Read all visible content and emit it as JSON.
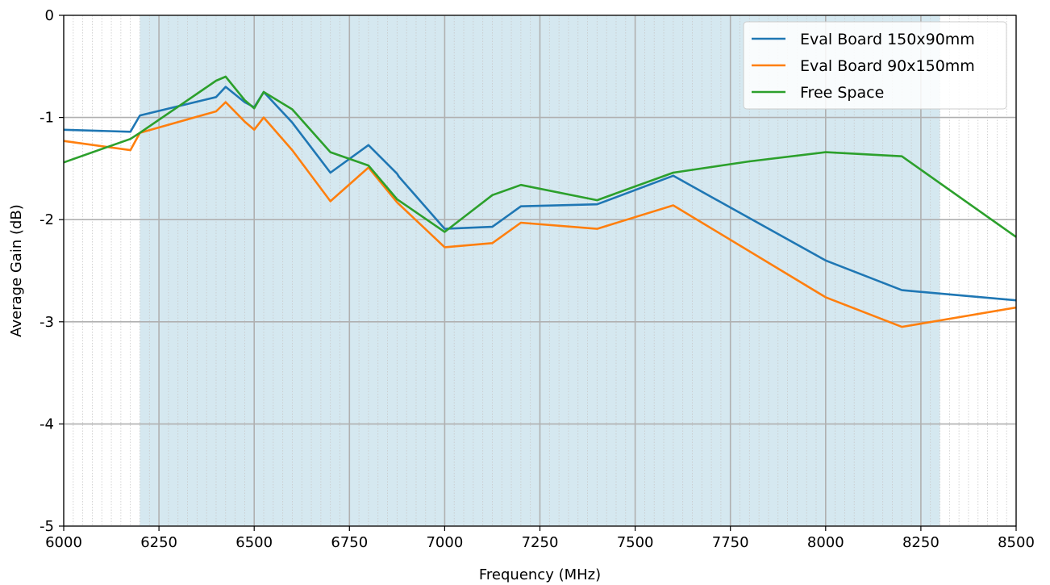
{
  "chart_data": {
    "type": "line",
    "xlabel": "Frequency (MHz)",
    "ylabel": "Average Gain (dB)",
    "xlim": [
      6000,
      8500
    ],
    "ylim": [
      -5,
      0
    ],
    "x_ticks": [
      6000,
      6250,
      6500,
      6750,
      7000,
      7250,
      7500,
      7750,
      8000,
      8250,
      8500
    ],
    "y_ticks": [
      0,
      -1,
      -2,
      -3,
      -4,
      -5
    ],
    "x_tick_labels": [
      "6000",
      "6250",
      "6500",
      "6750",
      "7000",
      "7250",
      "7500",
      "7750",
      "8000",
      "8250",
      "8500"
    ],
    "y_tick_labels": [
      "0",
      "-1",
      "-2",
      "-3",
      "-4",
      "-5"
    ],
    "grid": true,
    "minor_grid_x": true,
    "legend_position": "top-right",
    "shaded_band": {
      "x_start": 6200,
      "x_end": 8300,
      "color": "#d5e8f0"
    },
    "series": [
      {
        "name": "Eval Board 150x90mm",
        "color": "#1f77b4",
        "points": [
          [
            6000,
            -1.12
          ],
          [
            6175,
            -1.14
          ],
          [
            6200,
            -0.98
          ],
          [
            6400,
            -0.8
          ],
          [
            6425,
            -0.7
          ],
          [
            6475,
            -0.85
          ],
          [
            6500,
            -0.9
          ],
          [
            6525,
            -0.75
          ],
          [
            6600,
            -1.05
          ],
          [
            6700,
            -1.54
          ],
          [
            6800,
            -1.27
          ],
          [
            6875,
            -1.55
          ],
          [
            6880,
            -1.58
          ],
          [
            7000,
            -2.09
          ],
          [
            7125,
            -2.07
          ],
          [
            7200,
            -1.87
          ],
          [
            7400,
            -1.85
          ],
          [
            7600,
            -1.57
          ],
          [
            8000,
            -2.4
          ],
          [
            8200,
            -2.69
          ],
          [
            8500,
            -2.79
          ]
        ]
      },
      {
        "name": "Eval Board 90x150mm",
        "color": "#ff7f0e",
        "points": [
          [
            6000,
            -1.23
          ],
          [
            6175,
            -1.32
          ],
          [
            6200,
            -1.15
          ],
          [
            6400,
            -0.94
          ],
          [
            6425,
            -0.85
          ],
          [
            6475,
            -1.04
          ],
          [
            6500,
            -1.12
          ],
          [
            6525,
            -1.0
          ],
          [
            6600,
            -1.32
          ],
          [
            6700,
            -1.82
          ],
          [
            6800,
            -1.49
          ],
          [
            6875,
            -1.83
          ],
          [
            7000,
            -2.27
          ],
          [
            7125,
            -2.23
          ],
          [
            7200,
            -2.03
          ],
          [
            7400,
            -2.09
          ],
          [
            7600,
            -1.86
          ],
          [
            8000,
            -2.76
          ],
          [
            8200,
            -3.05
          ],
          [
            8500,
            -2.86
          ]
        ]
      },
      {
        "name": "Free Space",
        "color": "#2ca02c",
        "points": [
          [
            6000,
            -1.44
          ],
          [
            6175,
            -1.21
          ],
          [
            6200,
            -1.15
          ],
          [
            6400,
            -0.64
          ],
          [
            6425,
            -0.6
          ],
          [
            6475,
            -0.83
          ],
          [
            6500,
            -0.91
          ],
          [
            6525,
            -0.75
          ],
          [
            6600,
            -0.92
          ],
          [
            6700,
            -1.34
          ],
          [
            6800,
            -1.47
          ],
          [
            6875,
            -1.8
          ],
          [
            7000,
            -2.12
          ],
          [
            7125,
            -1.76
          ],
          [
            7200,
            -1.66
          ],
          [
            7400,
            -1.81
          ],
          [
            7600,
            -1.54
          ],
          [
            7800,
            -1.43
          ],
          [
            8000,
            -1.34
          ],
          [
            8200,
            -1.38
          ],
          [
            8500,
            -2.17
          ]
        ]
      }
    ]
  }
}
